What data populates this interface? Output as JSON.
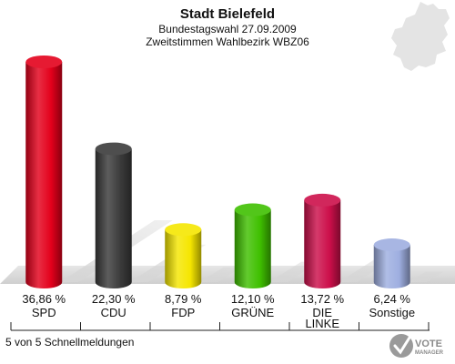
{
  "header": {
    "title": "Stadt Bielefeld",
    "subtitle1": "Bundestagswahl 27.09.2009",
    "subtitle2": "Zweitstimmen Wahlbezirk WBZ06"
  },
  "footer": {
    "note": "5 von 5 Schnellmeldungen"
  },
  "logo": {
    "word1": "VOTE",
    "word2": "MANAGER"
  },
  "chart_data": {
    "type": "bar",
    "categories": [
      "SPD",
      "CDU",
      "FDP",
      "GRÜNE",
      "DIE LINKE",
      "Sonstige"
    ],
    "category_lines": [
      [
        "SPD"
      ],
      [
        "CDU"
      ],
      [
        "FDP"
      ],
      [
        "GRÜNE"
      ],
      [
        "DIE",
        "LINKE"
      ],
      [
        "Sonstige"
      ]
    ],
    "values": [
      36.86,
      22.3,
      8.79,
      12.1,
      13.72,
      6.24
    ],
    "value_labels": [
      "36,86 %",
      "22,30 %",
      "8,79 %",
      "12,10 %",
      "13,72 %",
      "6,24 %"
    ],
    "colors": [
      "#e3001b",
      "#3a3a3a",
      "#f5e600",
      "#3fc000",
      "#cc0f4a",
      "#9eaee0"
    ],
    "title": "Stadt Bielefeld",
    "xlabel": "",
    "ylabel": "",
    "grid": false,
    "legend": "none"
  }
}
